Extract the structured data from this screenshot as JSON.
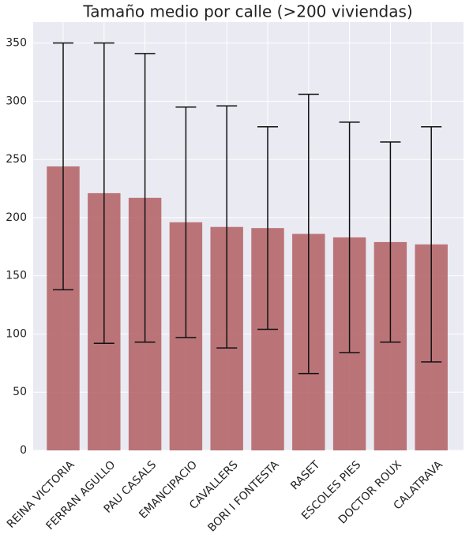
{
  "chart_data": {
    "type": "bar",
    "title": "Tamaño medio por calle (>200 viviendas)",
    "categories": [
      "REINA VICTORIA",
      "FERRAN AGULLO",
      "PAU CASALS",
      "EMANCIPACIO",
      "CAVALLERS",
      "BORI I FONTESTA",
      "RASET",
      "ESCOLES PIES",
      "DOCTOR ROUX",
      "CALATRAVA"
    ],
    "values": [
      244,
      221,
      217,
      196,
      192,
      191,
      186,
      183,
      179,
      177
    ],
    "errors": [
      106,
      129,
      124,
      99,
      104,
      87,
      120,
      99,
      86,
      101
    ],
    "color": "#b5676a",
    "ylim": [
      0,
      368
    ],
    "yticks": [
      0,
      50,
      100,
      150,
      200,
      250,
      300,
      350
    ],
    "grid": true
  }
}
